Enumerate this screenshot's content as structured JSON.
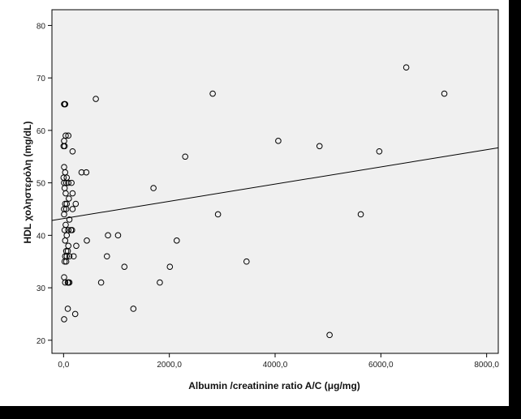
{
  "chart_data": {
    "type": "scatter",
    "title": "",
    "xlabel": "Albumin /creatinine ratio A/C (μg/mg)",
    "ylabel": "HDL χοληστερόλη (mg/dL)",
    "xlim": [
      -220,
      8220
    ],
    "ylim": [
      17.5,
      83
    ],
    "x_ticks": [
      0,
      2000,
      4000,
      6000,
      8000
    ],
    "x_tick_labels": [
      "0,0",
      "2000,0",
      "4000,0",
      "6000,0",
      "8000,0"
    ],
    "y_ticks": [
      20,
      30,
      40,
      50,
      60,
      70,
      80
    ],
    "y_tick_labels": [
      "20",
      "30",
      "40",
      "50",
      "60",
      "70",
      "80"
    ],
    "grid": false,
    "plot_background": "#f0f0f0",
    "marker_color": "#000000",
    "points": [
      {
        "x": 10,
        "y": 65
      },
      {
        "x": 30,
        "y": 65
      },
      {
        "x": 20,
        "y": 65
      },
      {
        "x": 10,
        "y": 58
      },
      {
        "x": 0,
        "y": 57
      },
      {
        "x": 20,
        "y": 57
      },
      {
        "x": 40,
        "y": 59
      },
      {
        "x": 90,
        "y": 59
      },
      {
        "x": 10,
        "y": 53
      },
      {
        "x": 30,
        "y": 52
      },
      {
        "x": 0,
        "y": 51
      },
      {
        "x": 60,
        "y": 51
      },
      {
        "x": 10,
        "y": 50
      },
      {
        "x": 50,
        "y": 50
      },
      {
        "x": 90,
        "y": 50
      },
      {
        "x": 20,
        "y": 49
      },
      {
        "x": 40,
        "y": 48
      },
      {
        "x": 100,
        "y": 47
      },
      {
        "x": 30,
        "y": 46
      },
      {
        "x": 60,
        "y": 46
      },
      {
        "x": 10,
        "y": 45
      },
      {
        "x": 50,
        "y": 45
      },
      {
        "x": 10,
        "y": 44
      },
      {
        "x": 110,
        "y": 43
      },
      {
        "x": 40,
        "y": 42
      },
      {
        "x": 20,
        "y": 41
      },
      {
        "x": 90,
        "y": 41
      },
      {
        "x": 140,
        "y": 41
      },
      {
        "x": 160,
        "y": 41
      },
      {
        "x": 60,
        "y": 40
      },
      {
        "x": 30,
        "y": 39
      },
      {
        "x": 90,
        "y": 38
      },
      {
        "x": 50,
        "y": 37
      },
      {
        "x": 80,
        "y": 37
      },
      {
        "x": 30,
        "y": 36
      },
      {
        "x": 60,
        "y": 36
      },
      {
        "x": 110,
        "y": 36
      },
      {
        "x": 20,
        "y": 35
      },
      {
        "x": 50,
        "y": 35
      },
      {
        "x": 10,
        "y": 32
      },
      {
        "x": 30,
        "y": 31
      },
      {
        "x": 80,
        "y": 31
      },
      {
        "x": 110,
        "y": 31
      },
      {
        "x": 90,
        "y": 31
      },
      {
        "x": 80,
        "y": 26
      },
      {
        "x": 10,
        "y": 24
      },
      {
        "x": 170,
        "y": 56
      },
      {
        "x": 150,
        "y": 50
      },
      {
        "x": 170,
        "y": 48
      },
      {
        "x": 170,
        "y": 45
      },
      {
        "x": 230,
        "y": 46
      },
      {
        "x": 240,
        "y": 38
      },
      {
        "x": 190,
        "y": 36
      },
      {
        "x": 220,
        "y": 25
      },
      {
        "x": 340,
        "y": 52
      },
      {
        "x": 430,
        "y": 52
      },
      {
        "x": 440,
        "y": 39
      },
      {
        "x": 610,
        "y": 66
      },
      {
        "x": 710,
        "y": 31
      },
      {
        "x": 840,
        "y": 40
      },
      {
        "x": 820,
        "y": 36
      },
      {
        "x": 1030,
        "y": 40
      },
      {
        "x": 1150,
        "y": 34
      },
      {
        "x": 1320,
        "y": 26
      },
      {
        "x": 1700,
        "y": 49
      },
      {
        "x": 1820,
        "y": 31
      },
      {
        "x": 2010,
        "y": 34
      },
      {
        "x": 2140,
        "y": 39
      },
      {
        "x": 2300,
        "y": 55
      },
      {
        "x": 2820,
        "y": 67
      },
      {
        "x": 2920,
        "y": 44
      },
      {
        "x": 3460,
        "y": 35
      },
      {
        "x": 4060,
        "y": 58
      },
      {
        "x": 4840,
        "y": 57
      },
      {
        "x": 5030,
        "y": 21
      },
      {
        "x": 5620,
        "y": 44
      },
      {
        "x": 5970,
        "y": 56
      },
      {
        "x": 6480,
        "y": 72
      },
      {
        "x": 7200,
        "y": 67
      }
    ],
    "fit_line": {
      "intercept": 43.2,
      "slope": 0.00164
    }
  }
}
